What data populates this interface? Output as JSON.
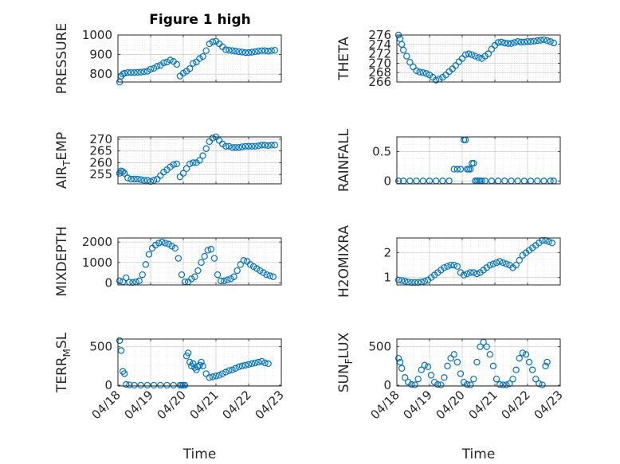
{
  "figure": {
    "title": "Figure 1 high",
    "marker_color": "#0072BD"
  },
  "chart_data": [
    {
      "type": "scatter",
      "title": "Figure 1 high",
      "xlabel": "",
      "ylabel": "PRESSURE",
      "xlim": [
        0,
        5
      ],
      "ylim": [
        760,
        1000
      ],
      "yticks": [
        800,
        900,
        1000
      ],
      "xticks": [
        0,
        1,
        2,
        3,
        4,
        5
      ],
      "xticklabels": [],
      "grid": true,
      "x": [
        0.05,
        0.1,
        0.15,
        0.2,
        0.3,
        0.4,
        0.5,
        0.6,
        0.7,
        0.8,
        0.9,
        1.0,
        1.1,
        1.2,
        1.3,
        1.4,
        1.5,
        1.6,
        1.7,
        1.8,
        1.9,
        2.0,
        2.1,
        2.2,
        2.3,
        2.4,
        2.5,
        2.6,
        2.7,
        2.8,
        2.9,
        3.0,
        3.1,
        3.2,
        3.3,
        3.4,
        3.5,
        3.6,
        3.7,
        3.8,
        3.9,
        4.0,
        4.1,
        4.2,
        4.3,
        4.4,
        4.5,
        4.6,
        4.7,
        4.8
      ],
      "y": [
        760,
        790,
        800,
        805,
        808,
        808,
        808,
        809,
        810,
        812,
        815,
        825,
        830,
        840,
        845,
        858,
        862,
        872,
        865,
        850,
        790,
        805,
        815,
        828,
        855,
        862,
        880,
        890,
        920,
        955,
        965,
        968,
        955,
        940,
        925,
        922,
        920,
        918,
        915,
        913,
        910,
        910,
        912,
        915,
        918,
        920,
        920,
        918,
        920,
        922
      ]
    },
    {
      "type": "scatter",
      "title": "",
      "xlabel": "",
      "ylabel": "THETA",
      "xlim": [
        0,
        5
      ],
      "ylim": [
        266,
        276
      ],
      "yticks": [
        266,
        268,
        270,
        272,
        274,
        276
      ],
      "xticks": [
        0,
        1,
        2,
        3,
        4,
        5
      ],
      "xticklabels": [],
      "grid": true,
      "x": [
        0.05,
        0.1,
        0.15,
        0.2,
        0.3,
        0.4,
        0.5,
        0.6,
        0.7,
        0.8,
        0.9,
        1.0,
        1.1,
        1.2,
        1.3,
        1.4,
        1.5,
        1.6,
        1.7,
        1.8,
        1.9,
        2.0,
        2.1,
        2.2,
        2.3,
        2.4,
        2.5,
        2.6,
        2.7,
        2.8,
        2.9,
        3.0,
        3.1,
        3.2,
        3.3,
        3.4,
        3.5,
        3.6,
        3.7,
        3.8,
        3.9,
        4.0,
        4.1,
        4.2,
        4.3,
        4.4,
        4.5,
        4.6,
        4.7,
        4.8
      ],
      "y": [
        276,
        275.2,
        274,
        272.8,
        271.5,
        270.2,
        269.2,
        268.4,
        268.1,
        268,
        267.8,
        267.5,
        267,
        266.4,
        266.6,
        267,
        267.5,
        268.2,
        268.8,
        269.5,
        270.3,
        271,
        271.8,
        272,
        271.8,
        271.5,
        271.2,
        271,
        271.5,
        272,
        273,
        273.8,
        274.4,
        274.5,
        274.3,
        274.2,
        274.2,
        274.4,
        274.6,
        274.5,
        274.5,
        274.6,
        274.6,
        274.7,
        274.8,
        274.9,
        275,
        274.8,
        274.6,
        274.3
      ]
    },
    {
      "type": "scatter",
      "title": "",
      "xlabel": "",
      "ylabel": "AIR_TEMP",
      "xlim": [
        0,
        5
      ],
      "ylim": [
        251,
        271
      ],
      "yticks": [
        255,
        260,
        265,
        270
      ],
      "xticks": [
        0,
        1,
        2,
        3,
        4,
        5
      ],
      "xticklabels": [],
      "grid": true,
      "x": [
        0.05,
        0.1,
        0.15,
        0.2,
        0.3,
        0.4,
        0.5,
        0.6,
        0.7,
        0.8,
        0.9,
        1.0,
        1.1,
        1.2,
        1.3,
        1.4,
        1.5,
        1.6,
        1.7,
        1.8,
        1.9,
        2.0,
        2.1,
        2.2,
        2.3,
        2.4,
        2.5,
        2.6,
        2.7,
        2.8,
        2.9,
        3.0,
        3.1,
        3.2,
        3.3,
        3.4,
        3.5,
        3.6,
        3.7,
        3.8,
        3.9,
        4.0,
        4.1,
        4.2,
        4.3,
        4.4,
        4.5,
        4.6,
        4.7,
        4.8
      ],
      "y": [
        255.5,
        256.5,
        256.2,
        255.5,
        253.5,
        253,
        253,
        253,
        252.8,
        252.5,
        252.5,
        252,
        252.5,
        253,
        254.5,
        256,
        257,
        258.2,
        259.2,
        259.5,
        254,
        255.5,
        257.5,
        259.5,
        260,
        260,
        261,
        263,
        266,
        269,
        270.5,
        271,
        269.5,
        268,
        267,
        267,
        266.5,
        266.5,
        266.5,
        266.8,
        267,
        267,
        267,
        267,
        267.2,
        267.5,
        267.5,
        267.3,
        267.5,
        267.5
      ]
    },
    {
      "type": "scatter",
      "title": "",
      "xlabel": "",
      "ylabel": "RAINFALL",
      "xlim": [
        0,
        5
      ],
      "ylim": [
        -0.05,
        0.75
      ],
      "yticks": [
        0,
        0.5
      ],
      "xticks": [
        0,
        1,
        2,
        3,
        4,
        5
      ],
      "xticklabels": [],
      "grid": true,
      "x": [
        0.05,
        0.2,
        0.4,
        0.6,
        0.8,
        1.0,
        1.2,
        1.4,
        1.6,
        1.75,
        1.85,
        1.95,
        2.05,
        2.1,
        2.15,
        2.2,
        2.25,
        2.3,
        2.35,
        2.4,
        2.45,
        2.5,
        2.55,
        2.6,
        2.7,
        2.9,
        3.1,
        3.3,
        3.5,
        3.7,
        3.9,
        4.1,
        4.3,
        4.5,
        4.7,
        4.8
      ],
      "y": [
        0,
        0,
        0,
        0,
        0,
        0,
        0,
        0,
        0,
        0.2,
        0.2,
        0.2,
        0.7,
        0.7,
        0.2,
        0.2,
        0.2,
        0.3,
        0.3,
        0,
        0,
        0,
        0,
        0,
        0,
        0,
        0,
        0,
        0,
        0,
        0,
        0,
        0,
        0,
        0,
        0
      ]
    },
    {
      "type": "scatter",
      "title": "",
      "xlabel": "",
      "ylabel": "MIXDEPTH",
      "xlim": [
        0,
        5
      ],
      "ylim": [
        -100,
        2200
      ],
      "yticks": [
        0,
        1000,
        2000
      ],
      "xticks": [
        0,
        1,
        2,
        3,
        4,
        5
      ],
      "xticklabels": [],
      "grid": true,
      "x": [
        0.05,
        0.15,
        0.25,
        0.35,
        0.45,
        0.55,
        0.65,
        0.75,
        0.85,
        0.95,
        1.05,
        1.15,
        1.25,
        1.35,
        1.45,
        1.55,
        1.65,
        1.75,
        1.85,
        1.95,
        2.05,
        2.15,
        2.25,
        2.35,
        2.45,
        2.55,
        2.65,
        2.75,
        2.85,
        2.95,
        3.05,
        3.15,
        3.25,
        3.35,
        3.45,
        3.55,
        3.65,
        3.75,
        3.85,
        3.95,
        4.05,
        4.15,
        4.25,
        4.35,
        4.45,
        4.55,
        4.65,
        4.75
      ],
      "y": [
        100,
        50,
        250,
        30,
        20,
        50,
        100,
        400,
        900,
        1400,
        1700,
        1850,
        1950,
        2000,
        1950,
        1900,
        1800,
        1700,
        1200,
        400,
        50,
        50,
        200,
        300,
        600,
        1000,
        1300,
        1600,
        1650,
        1200,
        400,
        100,
        100,
        150,
        200,
        300,
        600,
        900,
        1100,
        1050,
        900,
        800,
        700,
        600,
        500,
        400,
        350,
        300
      ]
    },
    {
      "type": "scatter",
      "title": "",
      "xlabel": "",
      "ylabel": "H2OMIXRA",
      "xlim": [
        0,
        5
      ],
      "ylim": [
        0.7,
        2.6
      ],
      "yticks": [
        1,
        2
      ],
      "xticks": [
        0,
        1,
        2,
        3,
        4,
        5
      ],
      "xticklabels": [],
      "grid": true,
      "x": [
        0.05,
        0.15,
        0.25,
        0.35,
        0.45,
        0.55,
        0.65,
        0.75,
        0.85,
        0.95,
        1.05,
        1.15,
        1.25,
        1.35,
        1.45,
        1.55,
        1.65,
        1.75,
        1.85,
        1.95,
        2.05,
        2.15,
        2.25,
        2.35,
        2.45,
        2.55,
        2.65,
        2.75,
        2.85,
        2.95,
        3.05,
        3.15,
        3.25,
        3.35,
        3.45,
        3.55,
        3.65,
        3.75,
        3.85,
        3.95,
        4.05,
        4.15,
        4.25,
        4.35,
        4.45,
        4.55,
        4.65,
        4.75
      ],
      "y": [
        0.9,
        0.88,
        0.85,
        0.82,
        0.8,
        0.8,
        0.8,
        0.82,
        0.85,
        0.9,
        1.0,
        1.1,
        1.2,
        1.3,
        1.4,
        1.45,
        1.5,
        1.5,
        1.45,
        1.2,
        1.1,
        1.15,
        1.2,
        1.2,
        1.15,
        1.2,
        1.3,
        1.4,
        1.5,
        1.55,
        1.6,
        1.65,
        1.6,
        1.55,
        1.5,
        1.4,
        1.5,
        1.7,
        1.9,
        2.0,
        2.1,
        2.2,
        2.3,
        2.4,
        2.5,
        2.5,
        2.45,
        2.4
      ]
    },
    {
      "type": "scatter",
      "title": "",
      "xlabel": "Time",
      "ylabel": "TERR_MSL",
      "xlim": [
        0,
        5
      ],
      "ylim": [
        -10,
        600
      ],
      "yticks": [
        0,
        500
      ],
      "xticks": [
        0,
        1,
        2,
        3,
        4,
        5
      ],
      "xticklabels": [
        "04/18",
        "04/19",
        "04/20",
        "04/21",
        "04/22",
        "04/23"
      ],
      "grid": true,
      "x": [
        0.05,
        0.1,
        0.15,
        0.2,
        0.25,
        0.35,
        0.5,
        0.7,
        0.9,
        1.1,
        1.3,
        1.5,
        1.7,
        1.9,
        1.95,
        2.0,
        2.05,
        2.1,
        2.15,
        2.2,
        2.25,
        2.3,
        2.35,
        2.4,
        2.45,
        2.5,
        2.55,
        2.6,
        2.7,
        2.8,
        2.9,
        3.0,
        3.1,
        3.2,
        3.3,
        3.4,
        3.5,
        3.6,
        3.7,
        3.8,
        3.9,
        4.0,
        4.1,
        4.2,
        4.3,
        4.4,
        4.5,
        4.6
      ],
      "y": [
        580,
        450,
        180,
        150,
        10,
        5,
        0,
        0,
        0,
        0,
        0,
        0,
        0,
        0,
        0,
        0,
        0,
        380,
        420,
        300,
        250,
        280,
        230,
        200,
        240,
        260,
        300,
        250,
        150,
        100,
        110,
        120,
        130,
        150,
        170,
        190,
        200,
        220,
        240,
        250,
        260,
        270,
        280,
        290,
        300,
        310,
        290,
        280
      ]
    },
    {
      "type": "scatter",
      "title": "",
      "xlabel": "Time",
      "ylabel": "SUN_FLUX",
      "xlim": [
        0,
        5
      ],
      "ylim": [
        -10,
        600
      ],
      "yticks": [
        0,
        500
      ],
      "xticks": [
        0,
        1,
        2,
        3,
        4,
        5
      ],
      "xticklabels": [
        "04/18",
        "04/19",
        "04/20",
        "04/21",
        "04/22",
        "04/23"
      ],
      "grid": true,
      "x": [
        0.05,
        0.1,
        0.15,
        0.25,
        0.35,
        0.45,
        0.55,
        0.65,
        0.75,
        0.85,
        0.95,
        1.05,
        1.15,
        1.25,
        1.35,
        1.45,
        1.55,
        1.65,
        1.75,
        1.85,
        1.95,
        2.05,
        2.15,
        2.25,
        2.35,
        2.45,
        2.55,
        2.65,
        2.75,
        2.85,
        2.95,
        3.05,
        3.15,
        3.25,
        3.35,
        3.45,
        3.55,
        3.65,
        3.75,
        3.85,
        3.95,
        4.05,
        4.15,
        4.25,
        4.35,
        4.45,
        4.55,
        4.6
      ],
      "y": [
        350,
        300,
        220,
        100,
        40,
        10,
        5,
        80,
        200,
        260,
        240,
        130,
        40,
        10,
        5,
        100,
        250,
        350,
        400,
        300,
        150,
        40,
        10,
        5,
        80,
        300,
        500,
        560,
        500,
        400,
        250,
        80,
        10,
        5,
        5,
        20,
        80,
        200,
        350,
        420,
        400,
        300,
        200,
        80,
        20,
        5,
        250,
        300
      ]
    }
  ]
}
